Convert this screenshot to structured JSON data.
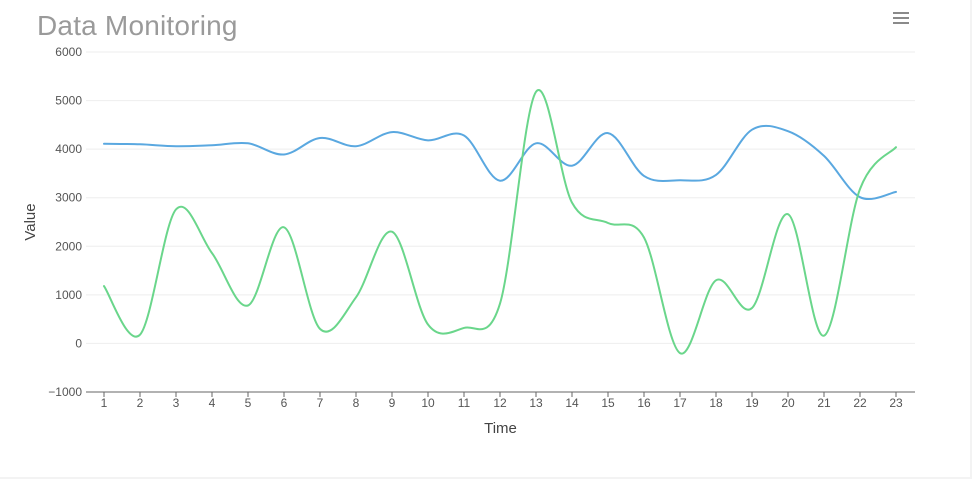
{
  "header": {
    "title": "Data Monitoring",
    "menu_icon": "hamburger-menu-icon"
  },
  "chart_data": {
    "type": "line",
    "title": "Data Monitoring",
    "xlabel": "Time",
    "ylabel": "Value",
    "x": [
      1,
      2,
      3,
      4,
      5,
      6,
      7,
      8,
      9,
      10,
      11,
      12,
      13,
      14,
      15,
      16,
      17,
      18,
      19,
      20,
      21,
      22,
      23
    ],
    "y_ticks": [
      -1000,
      0,
      1000,
      2000,
      3000,
      4000,
      5000,
      6000
    ],
    "y_tick_labels": [
      "−1000",
      "0",
      "1000",
      "2000",
      "3000",
      "4000",
      "5000",
      "6000"
    ],
    "ylim": [
      -1000,
      6000
    ],
    "grid": true,
    "legend": "none",
    "series": [
      {
        "color": "#5aa8e0",
        "values": [
          4110,
          4100,
          4060,
          4080,
          4120,
          3890,
          4230,
          4060,
          4350,
          4180,
          4280,
          3350,
          4120,
          3660,
          4330,
          3450,
          3360,
          3470,
          4400,
          4370,
          3860,
          3010,
          3120
        ]
      },
      {
        "color": "#6ad68b",
        "values": [
          1180,
          180,
          2760,
          1860,
          780,
          2390,
          300,
          950,
          2300,
          390,
          320,
          820,
          5180,
          2900,
          2480,
          2180,
          -200,
          1300,
          730,
          2660,
          160,
          3180,
          4040
        ]
      }
    ]
  }
}
